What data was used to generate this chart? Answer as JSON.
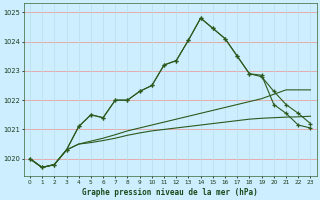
{
  "title": "Graphe pression niveau de la mer (hPa)",
  "bg_color": "#cceeff",
  "grid_h_color": "#e8a0a0",
  "grid_v_color": "#cceeff",
  "line_color": "#2d5a1e",
  "x_min": -0.5,
  "x_max": 23.5,
  "y_min": 1019.4,
  "y_max": 1025.3,
  "yticks": [
    1020,
    1021,
    1022,
    1023,
    1024,
    1025
  ],
  "xticks": [
    0,
    1,
    2,
    3,
    4,
    5,
    6,
    7,
    8,
    9,
    10,
    11,
    12,
    13,
    14,
    15,
    16,
    17,
    18,
    19,
    20,
    21,
    22,
    23
  ],
  "series1": [
    1020.0,
    1019.7,
    1019.8,
    1020.3,
    1021.1,
    1021.5,
    1021.4,
    1022.0,
    1022.0,
    1022.3,
    1022.5,
    1023.2,
    1023.35,
    1024.05,
    1024.8,
    1024.45,
    1024.1,
    1023.5,
    1022.9,
    1022.8,
    1022.3,
    1021.85,
    1021.55,
    1021.2
  ],
  "series2": [
    1020.0,
    1019.7,
    1019.8,
    1020.3,
    1021.1,
    1021.5,
    1021.4,
    1022.0,
    1022.0,
    1022.3,
    1022.5,
    1023.2,
    1023.35,
    1024.05,
    1024.8,
    1024.45,
    1024.1,
    1023.5,
    1022.9,
    1022.85,
    1021.85,
    1021.55,
    1021.15,
    1021.05
  ],
  "series3": [
    1020.0,
    1019.7,
    1019.8,
    1020.3,
    1020.5,
    1020.55,
    1020.62,
    1020.7,
    1020.8,
    1020.88,
    1020.95,
    1021.0,
    1021.05,
    1021.1,
    1021.15,
    1021.2,
    1021.25,
    1021.3,
    1021.35,
    1021.38,
    1021.4,
    1021.42,
    1021.43,
    1021.45
  ],
  "series4": [
    1020.0,
    1019.7,
    1019.8,
    1020.3,
    1020.5,
    1020.6,
    1020.7,
    1020.82,
    1020.95,
    1021.05,
    1021.15,
    1021.25,
    1021.35,
    1021.45,
    1021.55,
    1021.65,
    1021.75,
    1021.85,
    1021.95,
    1022.05,
    1022.2,
    1022.35,
    1022.35,
    1022.35
  ]
}
